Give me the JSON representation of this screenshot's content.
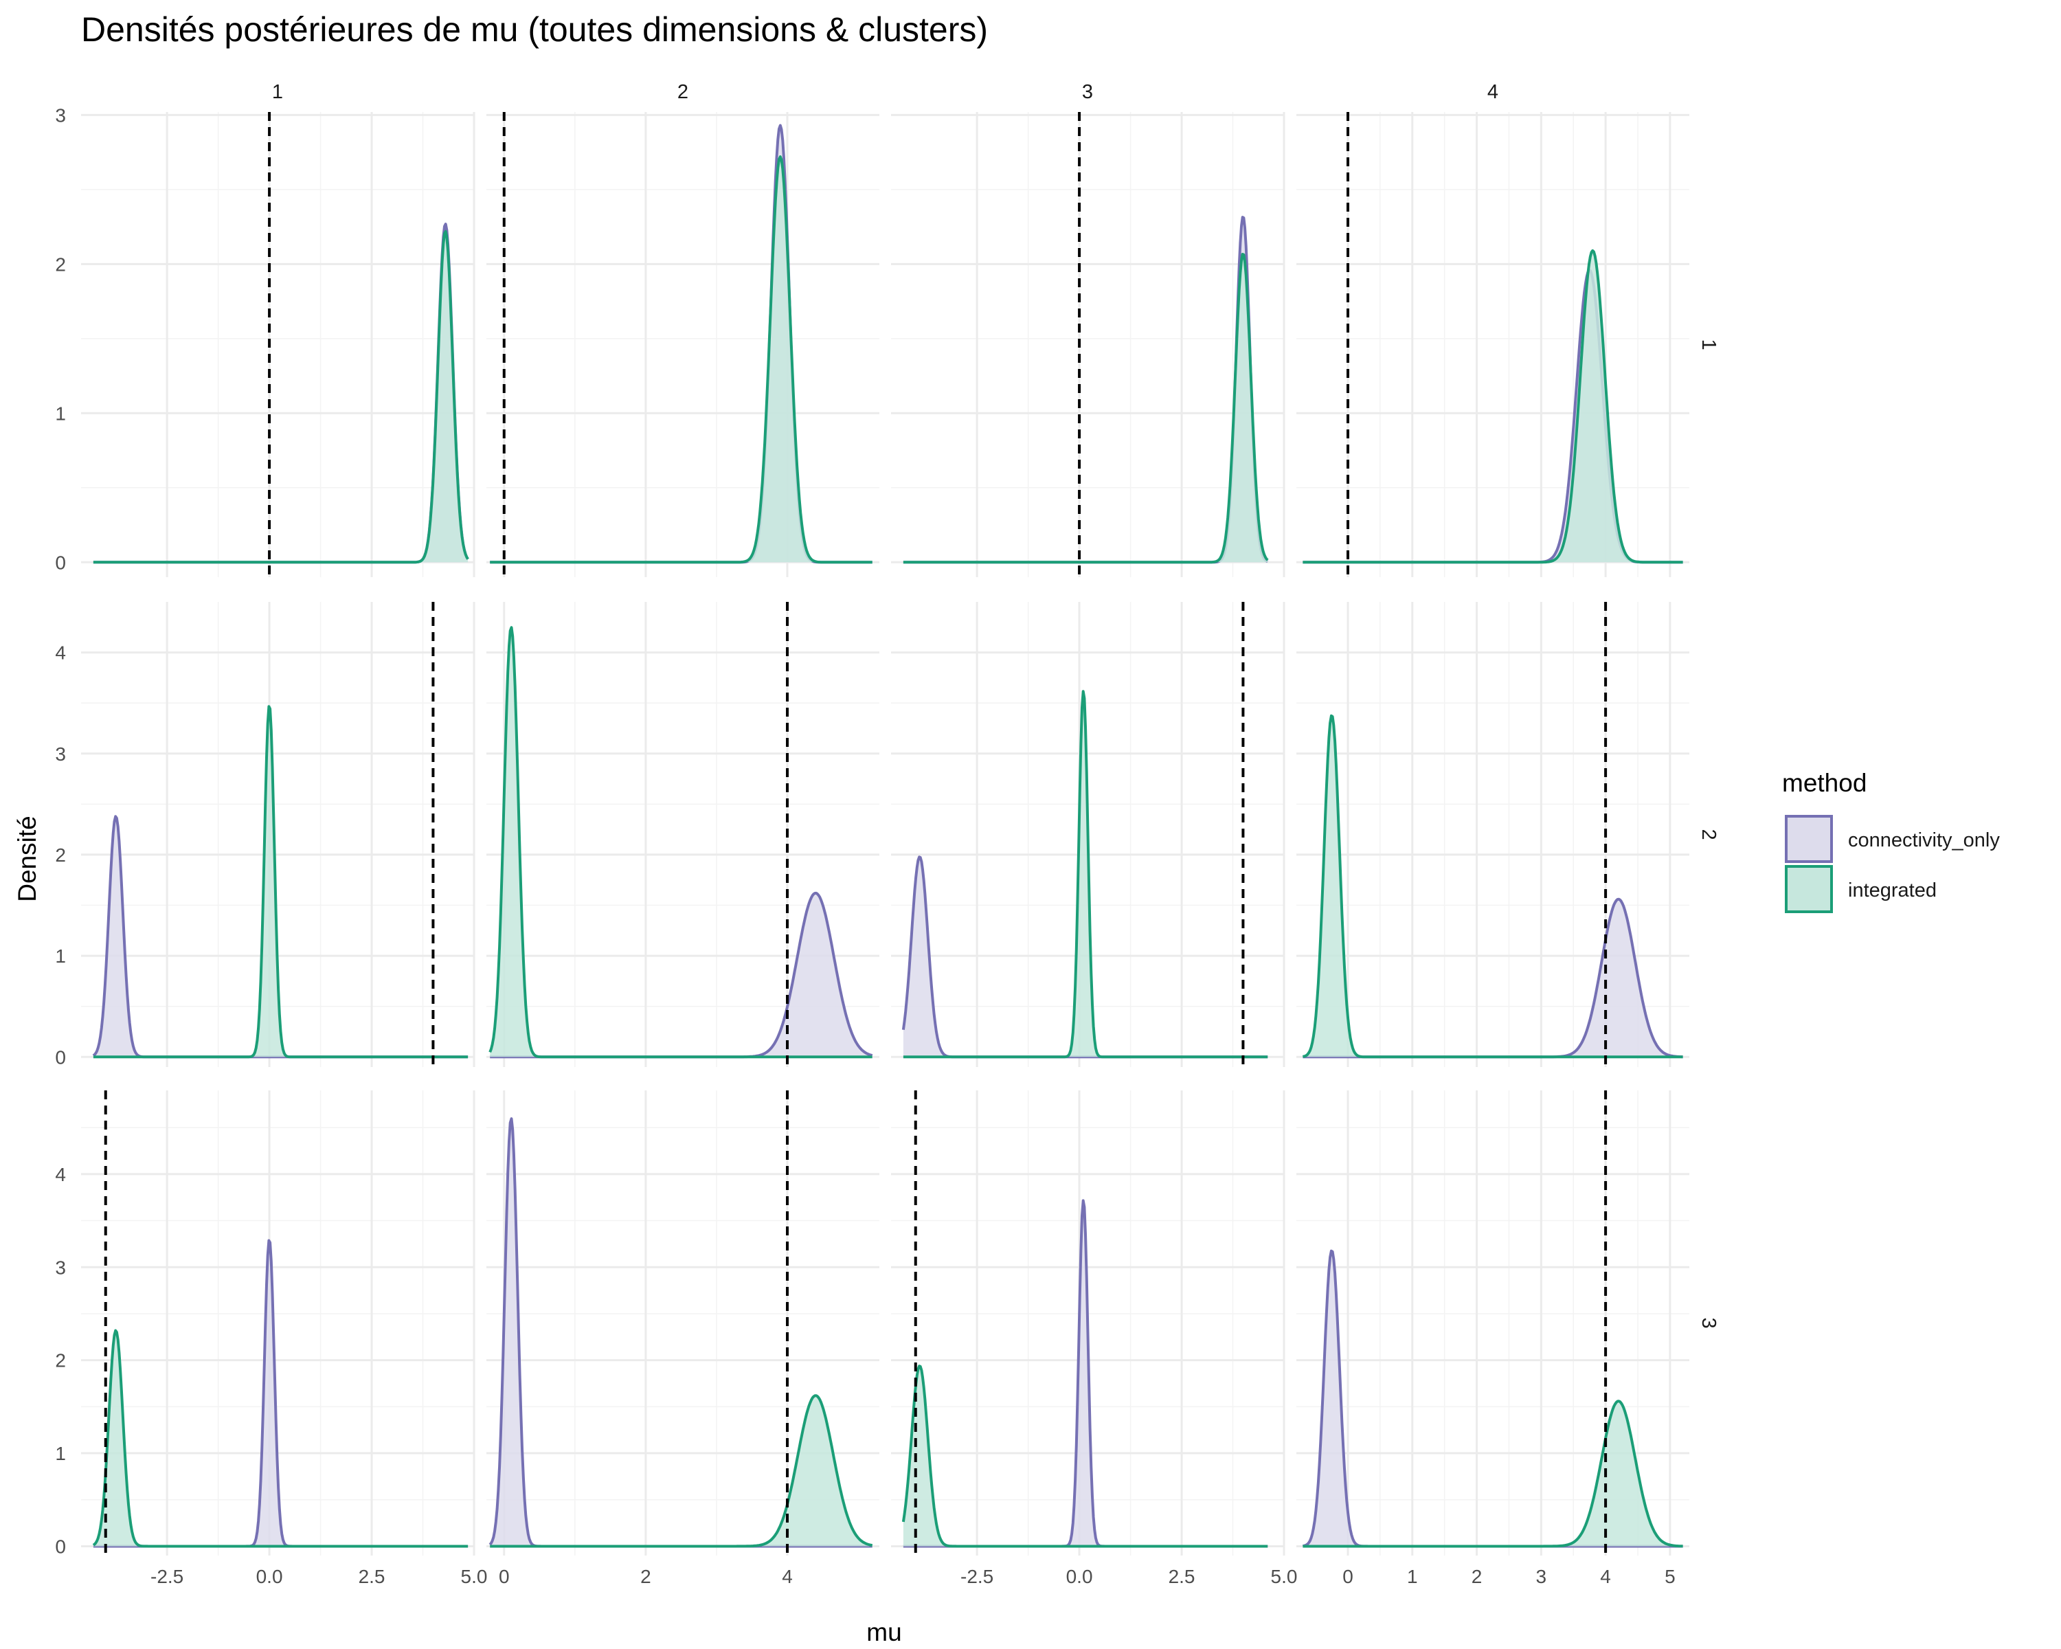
{
  "chart_data": {
    "type": "area",
    "title": "Densités postérieures de mu (toutes dimensions & clusters)",
    "xlabel": "mu",
    "ylabel": "Densité",
    "facet_columns": [
      "1",
      "2",
      "3",
      "4"
    ],
    "facet_rows": [
      "1",
      "2",
      "3"
    ],
    "x_scales": [
      {
        "lim": [
          -4.6,
          5.0
        ],
        "ticks": [
          -2.5,
          0.0,
          2.5,
          5.0
        ],
        "tick_labels": [
          "-2.5",
          "0.0",
          "2.5",
          "5.0"
        ]
      },
      {
        "lim": [
          -0.25,
          5.3
        ],
        "ticks": [
          0,
          2,
          4
        ],
        "tick_labels": [
          "0",
          "2",
          "4"
        ]
      },
      {
        "lim": [
          -4.6,
          5.0
        ],
        "ticks": [
          -2.5,
          0.0,
          2.5,
          5.0
        ],
        "tick_labels": [
          "-2.5",
          "0.0",
          "2.5",
          "5.0"
        ]
      },
      {
        "lim": [
          -0.8,
          5.3
        ],
        "ticks": [
          0,
          1,
          2,
          3,
          4,
          5
        ],
        "tick_labels": [
          "0",
          "1",
          "2",
          "3",
          "4",
          "5"
        ]
      }
    ],
    "y_scales": [
      {
        "lim": [
          -0.1,
          3.02
        ],
        "ticks": [
          0,
          1,
          2,
          3
        ],
        "tick_labels": [
          "0",
          "1",
          "2",
          "3"
        ]
      },
      {
        "lim": [
          -0.1,
          4.5
        ],
        "ticks": [
          0,
          1,
          2,
          3,
          4
        ],
        "tick_labels": [
          "0",
          "1",
          "2",
          "3",
          "4"
        ]
      },
      {
        "lim": [
          -0.1,
          4.9
        ],
        "ticks": [
          0,
          1,
          2,
          3,
          4
        ],
        "tick_labels": [
          "0",
          "1",
          "2",
          "3",
          "4"
        ]
      }
    ],
    "legend": {
      "title": "method",
      "position": "right",
      "entries": [
        {
          "name": "connectivity_only",
          "color": "#7570b3",
          "fill": "#dddcec"
        },
        {
          "name": "integrated",
          "color": "#1b9e77",
          "fill": "#c6e7dd"
        }
      ]
    },
    "reference_lines": [
      [
        0,
        0,
        0,
        0
      ],
      [
        4,
        4,
        4,
        4
      ],
      [
        -4,
        4,
        -4,
        4
      ]
    ],
    "panels": [
      {
        "row": 0,
        "col": 0,
        "x_range": [
          -4.3,
          4.85
        ],
        "series": [
          {
            "name": "connectivity_only",
            "peaks": [
              {
                "mean": 4.3,
                "sd": 0.18,
                "height": 2.27
              }
            ]
          },
          {
            "name": "integrated",
            "peaks": [
              {
                "mean": 4.3,
                "sd": 0.18,
                "height": 2.22
              }
            ]
          }
        ]
      },
      {
        "row": 0,
        "col": 1,
        "x_range": [
          -0.2,
          5.2
        ],
        "series": [
          {
            "name": "connectivity_only",
            "peaks": [
              {
                "mean": 3.9,
                "sd": 0.13,
                "height": 2.93
              }
            ]
          },
          {
            "name": "integrated",
            "peaks": [
              {
                "mean": 3.9,
                "sd": 0.14,
                "height": 2.72
              }
            ]
          }
        ]
      },
      {
        "row": 0,
        "col": 2,
        "x_range": [
          -4.3,
          4.6
        ],
        "series": [
          {
            "name": "connectivity_only",
            "peaks": [
              {
                "mean": 4.0,
                "sd": 0.17,
                "height": 2.32
              }
            ]
          },
          {
            "name": "integrated",
            "peaks": [
              {
                "mean": 4.0,
                "sd": 0.19,
                "height": 2.07
              }
            ]
          }
        ]
      },
      {
        "row": 0,
        "col": 3,
        "x_range": [
          -0.7,
          5.2
        ],
        "series": [
          {
            "name": "connectivity_only",
            "peaks": [
              {
                "mean": 3.75,
                "sd": 0.2,
                "height": 1.96
              }
            ]
          },
          {
            "name": "integrated",
            "peaks": [
              {
                "mean": 3.8,
                "sd": 0.19,
                "height": 2.09
              }
            ]
          }
        ]
      },
      {
        "row": 1,
        "col": 0,
        "x_range": [
          -4.3,
          4.85
        ],
        "series": [
          {
            "name": "connectivity_only",
            "peaks": [
              {
                "mean": -3.75,
                "sd": 0.17,
                "height": 2.38
              }
            ]
          },
          {
            "name": "integrated",
            "peaks": [
              {
                "mean": 0.0,
                "sd": 0.12,
                "height": 3.48
              }
            ]
          }
        ]
      },
      {
        "row": 1,
        "col": 1,
        "x_range": [
          -0.2,
          5.2
        ],
        "series": [
          {
            "name": "connectivity_only",
            "peaks": [
              {
                "mean": 4.4,
                "sd": 0.26,
                "height": 1.62
              }
            ]
          },
          {
            "name": "integrated",
            "peaks": [
              {
                "mean": 0.1,
                "sd": 0.1,
                "height": 4.25
              }
            ]
          }
        ]
      },
      {
        "row": 1,
        "col": 2,
        "x_range": [
          -4.3,
          4.6
        ],
        "series": [
          {
            "name": "connectivity_only",
            "peaks": [
              {
                "mean": -3.9,
                "sd": 0.2,
                "height": 1.98
              }
            ]
          },
          {
            "name": "integrated",
            "peaks": [
              {
                "mean": 0.1,
                "sd": 0.11,
                "height": 3.62
              }
            ]
          }
        ]
      },
      {
        "row": 1,
        "col": 3,
        "x_range": [
          -0.7,
          5.2
        ],
        "series": [
          {
            "name": "connectivity_only",
            "peaks": [
              {
                "mean": 4.2,
                "sd": 0.26,
                "height": 1.56
              }
            ]
          },
          {
            "name": "integrated",
            "peaks": [
              {
                "mean": -0.25,
                "sd": 0.12,
                "height": 3.38
              }
            ]
          }
        ]
      },
      {
        "row": 2,
        "col": 0,
        "x_range": [
          -4.3,
          4.85
        ],
        "series": [
          {
            "name": "connectivity_only",
            "peaks": [
              {
                "mean": 0.0,
                "sd": 0.12,
                "height": 3.3
              }
            ]
          },
          {
            "name": "integrated",
            "peaks": [
              {
                "mean": -3.75,
                "sd": 0.17,
                "height": 2.32
              }
            ]
          }
        ]
      },
      {
        "row": 2,
        "col": 1,
        "x_range": [
          -0.2,
          5.2
        ],
        "series": [
          {
            "name": "connectivity_only",
            "peaks": [
              {
                "mean": 0.1,
                "sd": 0.09,
                "height": 4.6
              }
            ]
          },
          {
            "name": "integrated",
            "peaks": [
              {
                "mean": 4.4,
                "sd": 0.25,
                "height": 1.62
              }
            ]
          }
        ]
      },
      {
        "row": 2,
        "col": 2,
        "x_range": [
          -4.3,
          4.6
        ],
        "series": [
          {
            "name": "connectivity_only",
            "peaks": [
              {
                "mean": 0.1,
                "sd": 0.11,
                "height": 3.72
              }
            ]
          },
          {
            "name": "integrated",
            "peaks": [
              {
                "mean": -3.9,
                "sd": 0.2,
                "height": 1.94
              }
            ]
          }
        ]
      },
      {
        "row": 2,
        "col": 3,
        "x_range": [
          -0.7,
          5.2
        ],
        "series": [
          {
            "name": "connectivity_only",
            "peaks": [
              {
                "mean": -0.25,
                "sd": 0.12,
                "height": 3.18
              }
            ]
          },
          {
            "name": "integrated",
            "peaks": [
              {
                "mean": 4.2,
                "sd": 0.26,
                "height": 1.56
              }
            ]
          }
        ]
      }
    ]
  }
}
